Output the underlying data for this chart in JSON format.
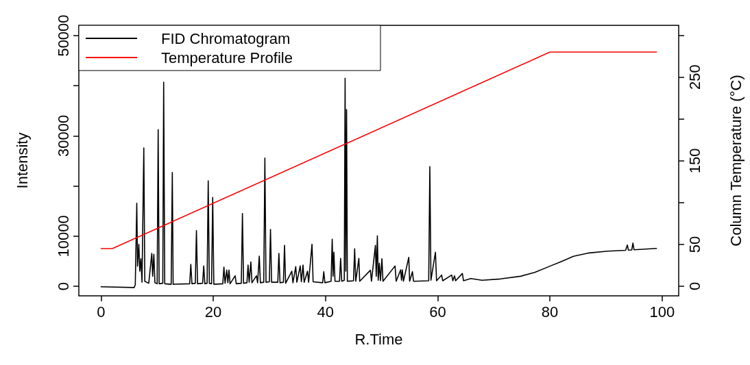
{
  "chart_data": {
    "type": "line",
    "xlabel": "R.Time",
    "ylabel": "Intensity",
    "y2label": "Column Temperature (°C)",
    "xlim": [
      -3.96,
      102.96
    ],
    "xticks": [
      0,
      20,
      40,
      60,
      80,
      100
    ],
    "ylim": [
      -1910,
      52050
    ],
    "yticks": [
      0,
      10000,
      {
        "value": 20000,
        "label": null
      },
      30000,
      {
        "value": 40000,
        "label": null
      },
      50000
    ],
    "y2lim": [
      -11.5,
      312
    ],
    "y2ticks": [
      0,
      50,
      {
        "value": 100,
        "label": null
      },
      150,
      {
        "value": 200,
        "label": null
      },
      250,
      {
        "value": 300,
        "label": null
      }
    ],
    "legend": "top left",
    "grid": false,
    "line_style": "solid",
    "series": [
      {
        "name": "FID Chromatogram",
        "color": "#000000",
        "x": [
          0,
          5.9,
          6.1,
          6.37,
          6.5,
          6.73,
          6.9,
          7.1,
          7.3,
          7.62,
          7.8,
          8.5,
          9.04,
          9.2,
          9.41,
          9.6,
          10.0,
          10.18,
          10.35,
          11.0,
          11.16,
          11.35,
          12.5,
          12.7,
          12.85,
          15.8,
          16.0,
          16.2,
          16.8,
          17.0,
          17.2,
          18.1,
          18.3,
          18.5,
          18.9,
          19.1,
          19.3,
          19.7,
          19.9,
          20.1,
          21.7,
          21.9,
          22.1,
          22.4,
          22.6,
          22.8,
          23.0,
          23.9,
          24.1,
          25.0,
          25.2,
          25.4,
          26.0,
          26.2,
          26.4,
          26.7,
          26.9,
          27.7,
          27.9,
          28.2,
          28.4,
          29.0,
          29.2,
          29.4,
          30.0,
          30.2,
          30.4,
          31.5,
          31.7,
          31.9,
          32.5,
          32.7,
          32.9,
          34.0,
          34.2,
          34.7,
          34.9,
          35.5,
          35.7,
          36.0,
          36.2,
          36.8,
          37.0,
          37.6,
          37.8,
          39.5,
          39.7,
          39.9,
          41.0,
          41.2,
          41.35,
          41.5,
          41.7,
          42.5,
          42.7,
          42.9,
          43.35,
          43.5,
          43.62,
          43.76,
          43.9,
          45.0,
          45.2,
          45.4,
          45.95,
          46.1,
          48.0,
          48.2,
          48.9,
          49.05,
          49.25,
          49.4,
          49.6,
          49.8,
          50.06,
          50.25,
          52.4,
          52.6,
          53.4,
          53.55,
          53.7,
          53.9,
          54.85,
          55.0,
          55.5,
          55.7,
          58.4,
          58.6,
          58.8,
          59.6,
          59.8,
          60.7,
          60.9,
          62.5,
          62.7,
          63.0,
          63.2,
          64.4,
          64.6,
          65.9,
          67.9,
          71.2,
          74.8,
          77.3,
          80.1,
          82.1,
          84.2,
          87.0,
          90.3,
          93.5,
          93.8,
          94.0,
          94.6,
          94.8,
          95.0,
          99.0
        ],
        "values": [
          -100,
          -250,
          300,
          16570,
          4000,
          8380,
          3000,
          5500,
          800,
          27600,
          1000,
          600,
          6560,
          2000,
          6390,
          700,
          500,
          31240,
          500,
          600,
          40700,
          500,
          400,
          22720,
          400,
          500,
          4370,
          500,
          600,
          11110,
          500,
          600,
          4050,
          500,
          600,
          21040,
          600,
          500,
          17710,
          400,
          500,
          3830,
          600,
          3230,
          700,
          3230,
          500,
          2100,
          500,
          600,
          14520,
          600,
          700,
          4230,
          800,
          4830,
          700,
          2100,
          700,
          6010,
          700,
          800,
          25590,
          800,
          900,
          11340,
          800,
          800,
          6560,
          700,
          800,
          8150,
          600,
          3000,
          700,
          3920,
          800,
          4050,
          900,
          4230,
          800,
          3000,
          800,
          8380,
          900,
          700,
          2910,
          700,
          1000,
          9380,
          2000,
          6790,
          1000,
          1000,
          5560,
          1000,
          1200,
          41500,
          3000,
          35250,
          1000,
          1100,
          7470,
          1000,
          5560,
          1000,
          3190,
          1000,
          8150,
          2000,
          10060,
          1200,
          4600,
          1100,
          5510,
          1000,
          4050,
          1000,
          3270,
          1200,
          3270,
          1000,
          5780,
          1000,
          2900,
          1000,
          1100,
          23860,
          1200,
          6790,
          1100,
          2230,
          1100,
          2230,
          1100,
          2100,
          1100,
          2550,
          1100,
          1550,
          1190,
          1460,
          2000,
          2780,
          4050,
          4960,
          5970,
          6650,
          7010,
          7170,
          8240,
          7200,
          7250,
          8610,
          7280,
          7560
        ]
      },
      {
        "name": "Temperature Profile",
        "color": "#ff0000",
        "axis": "y2",
        "x": [
          0,
          2,
          80,
          99
        ],
        "values": [
          45,
          45,
          280,
          280
        ]
      }
    ]
  }
}
